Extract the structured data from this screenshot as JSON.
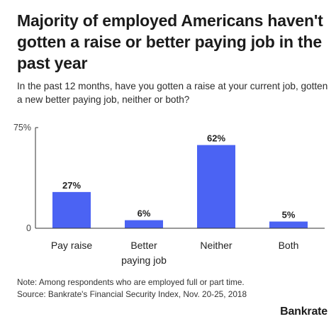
{
  "header": {
    "title": "Majority of employed Americans haven't gotten a raise or better paying job in the past year",
    "subtitle": "In the past 12 months, have you gotten a raise at your current job, gotten a new better paying job, neither or both?"
  },
  "chart_data": {
    "type": "bar",
    "categories": [
      "Pay raise",
      "Better paying job",
      "Neither",
      "Both"
    ],
    "category_lines": [
      [
        "Pay raise"
      ],
      [
        "Better",
        "paying job"
      ],
      [
        "Neither"
      ],
      [
        "Both"
      ]
    ],
    "values": [
      27,
      6,
      62,
      5
    ],
    "data_labels": [
      "27%",
      "6%",
      "62%",
      "5%"
    ],
    "ylim": [
      0,
      75
    ],
    "yticks": [
      0,
      75
    ],
    "ytick_labels": [
      "0",
      "75%"
    ],
    "bar_color": "#4b63f3",
    "grid": false
  },
  "footer": {
    "note": "Note: Among respondents who are employed full or part time.",
    "source": "Source: Bankrate's Financial Security Index, Nov. 20-25, 2018",
    "brand": "Bankrate"
  }
}
